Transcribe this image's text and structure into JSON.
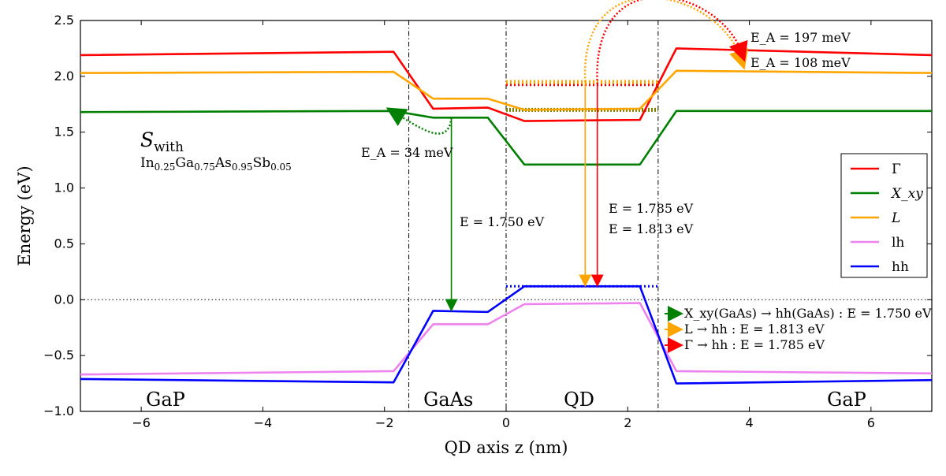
{
  "chart_data": {
    "type": "line",
    "xlabel": "QD axis z (nm)",
    "ylabel": "Energy (eV)",
    "xlim": [
      -7,
      7
    ],
    "ylim": [
      -1.0,
      2.5
    ],
    "xticks": [
      -6,
      -4,
      -2,
      0,
      2,
      4,
      6
    ],
    "xtick_labels": [
      "−6",
      "−4",
      "−2",
      "0",
      "2",
      "4",
      "6"
    ],
    "yticks": [
      -1.0,
      -0.5,
      0.0,
      0.5,
      1.0,
      1.5,
      2.0,
      2.5
    ],
    "ytick_labels": [
      "−1.0",
      "−0.5",
      "0.0",
      "0.5",
      "1.0",
      "1.5",
      "2.0",
      "2.5"
    ],
    "grid": false,
    "legend_position": "right",
    "series": [
      {
        "name": "Γ",
        "color": "#ff0000",
        "x": [
          -7,
          -1.85,
          -1.2,
          -0.3,
          0.3,
          2.2,
          2.8,
          7
        ],
        "y": [
          2.19,
          2.22,
          1.71,
          1.72,
          1.6,
          1.61,
          2.25,
          2.19
        ]
      },
      {
        "name": "X_xy",
        "color": "#008000",
        "x": [
          -7,
          -1.85,
          -1.2,
          -0.3,
          0.3,
          2.2,
          2.8,
          7
        ],
        "y": [
          1.68,
          1.69,
          1.63,
          1.63,
          1.21,
          1.21,
          1.69,
          1.69
        ]
      },
      {
        "name": "L",
        "color": "#ffa500",
        "x": [
          -7,
          -1.85,
          -1.2,
          -0.3,
          0.3,
          2.2,
          2.8,
          7
        ],
        "y": [
          2.03,
          2.04,
          1.8,
          1.8,
          1.7,
          1.71,
          2.05,
          2.03
        ]
      },
      {
        "name": "lh",
        "color": "#ee82ee",
        "x": [
          -7,
          -1.85,
          -1.2,
          -0.3,
          0.3,
          2.2,
          2.8,
          7
        ],
        "y": [
          -0.67,
          -0.64,
          -0.22,
          -0.22,
          -0.04,
          -0.03,
          -0.64,
          -0.66
        ]
      },
      {
        "name": "hh",
        "color": "#0000ff",
        "x": [
          -7,
          -1.85,
          -1.2,
          -0.3,
          0.3,
          2.2,
          2.8,
          7
        ],
        "y": [
          -0.71,
          -0.74,
          -0.1,
          -0.11,
          0.12,
          0.12,
          -0.75,
          -0.72
        ]
      }
    ],
    "reference_lines": {
      "horizontal_dotted": [
        0.0
      ],
      "vertical_dashdot": [
        -1.6,
        0.0,
        2.5
      ]
    },
    "levels": [
      {
        "color": "#ff0000",
        "style": "dotted",
        "x": [
          0.0,
          2.5
        ],
        "y": [
          1.93
        ]
      },
      {
        "color": "#ffa500",
        "style": "dotted",
        "x": [
          0.0,
          2.5
        ],
        "y": [
          1.95
        ]
      },
      {
        "color": "#808000",
        "style": "dotted",
        "x": [
          0.0,
          2.5
        ],
        "y": [
          1.7
        ]
      },
      {
        "color": "#0000ff",
        "style": "dotted",
        "x": [
          0.0,
          2.5
        ],
        "y": [
          0.12
        ]
      }
    ],
    "transitions": [
      {
        "color": "#008000",
        "x": -0.9,
        "from": 1.63,
        "to": -0.1,
        "label": "E = 1.750 eV"
      },
      {
        "color": "#ffa500",
        "x": 1.3,
        "from": 1.95,
        "to": 0.12,
        "label": "E = 1.813 eV"
      },
      {
        "color": "#ff0000",
        "x": 1.5,
        "from": 1.93,
        "to": 0.12,
        "label": "E = 1.785 eV"
      }
    ],
    "activation_paths": [
      {
        "color": "#008000",
        "from": [
          -0.9,
          1.63
        ],
        "to": [
          -1.9,
          1.69
        ],
        "label": "E_A = 34 meV"
      },
      {
        "color": "#ffa500",
        "from": [
          1.3,
          1.95
        ],
        "to": [
          3.9,
          2.1
        ],
        "label": "E_A = 108 meV"
      },
      {
        "color": "#ff0000",
        "from": [
          1.5,
          1.93
        ],
        "to": [
          3.9,
          2.17
        ],
        "label": "E_A = 197 meV"
      }
    ],
    "annotations": {
      "sample_main": "S",
      "sample_sub": "with",
      "composition": [
        {
          "t": "In",
          "sub": false
        },
        {
          "t": "0.25",
          "sub": true
        },
        {
          "t": "Ga",
          "sub": false
        },
        {
          "t": "0.75",
          "sub": true
        },
        {
          "t": "As",
          "sub": false
        },
        {
          "t": "0.95",
          "sub": true
        },
        {
          "t": "Sb",
          "sub": false
        },
        {
          "t": "0.05",
          "sub": true
        }
      ],
      "regions": [
        {
          "label": "GaP",
          "x": -5.6
        },
        {
          "label": "GaAs",
          "x": -0.95
        },
        {
          "label": "QD",
          "x": 1.2
        },
        {
          "label": "GaP",
          "x": 5.6
        }
      ],
      "transition_legend": [
        {
          "color": "#008000",
          "text": "X_xy(GaAs) → hh(GaAs) : E = 1.750 eV"
        },
        {
          "color": "#ffa500",
          "text": "L → hh : E = 1.813 eV"
        },
        {
          "color": "#ff0000",
          "text": "Γ → hh : E = 1.785 eV"
        }
      ]
    }
  }
}
